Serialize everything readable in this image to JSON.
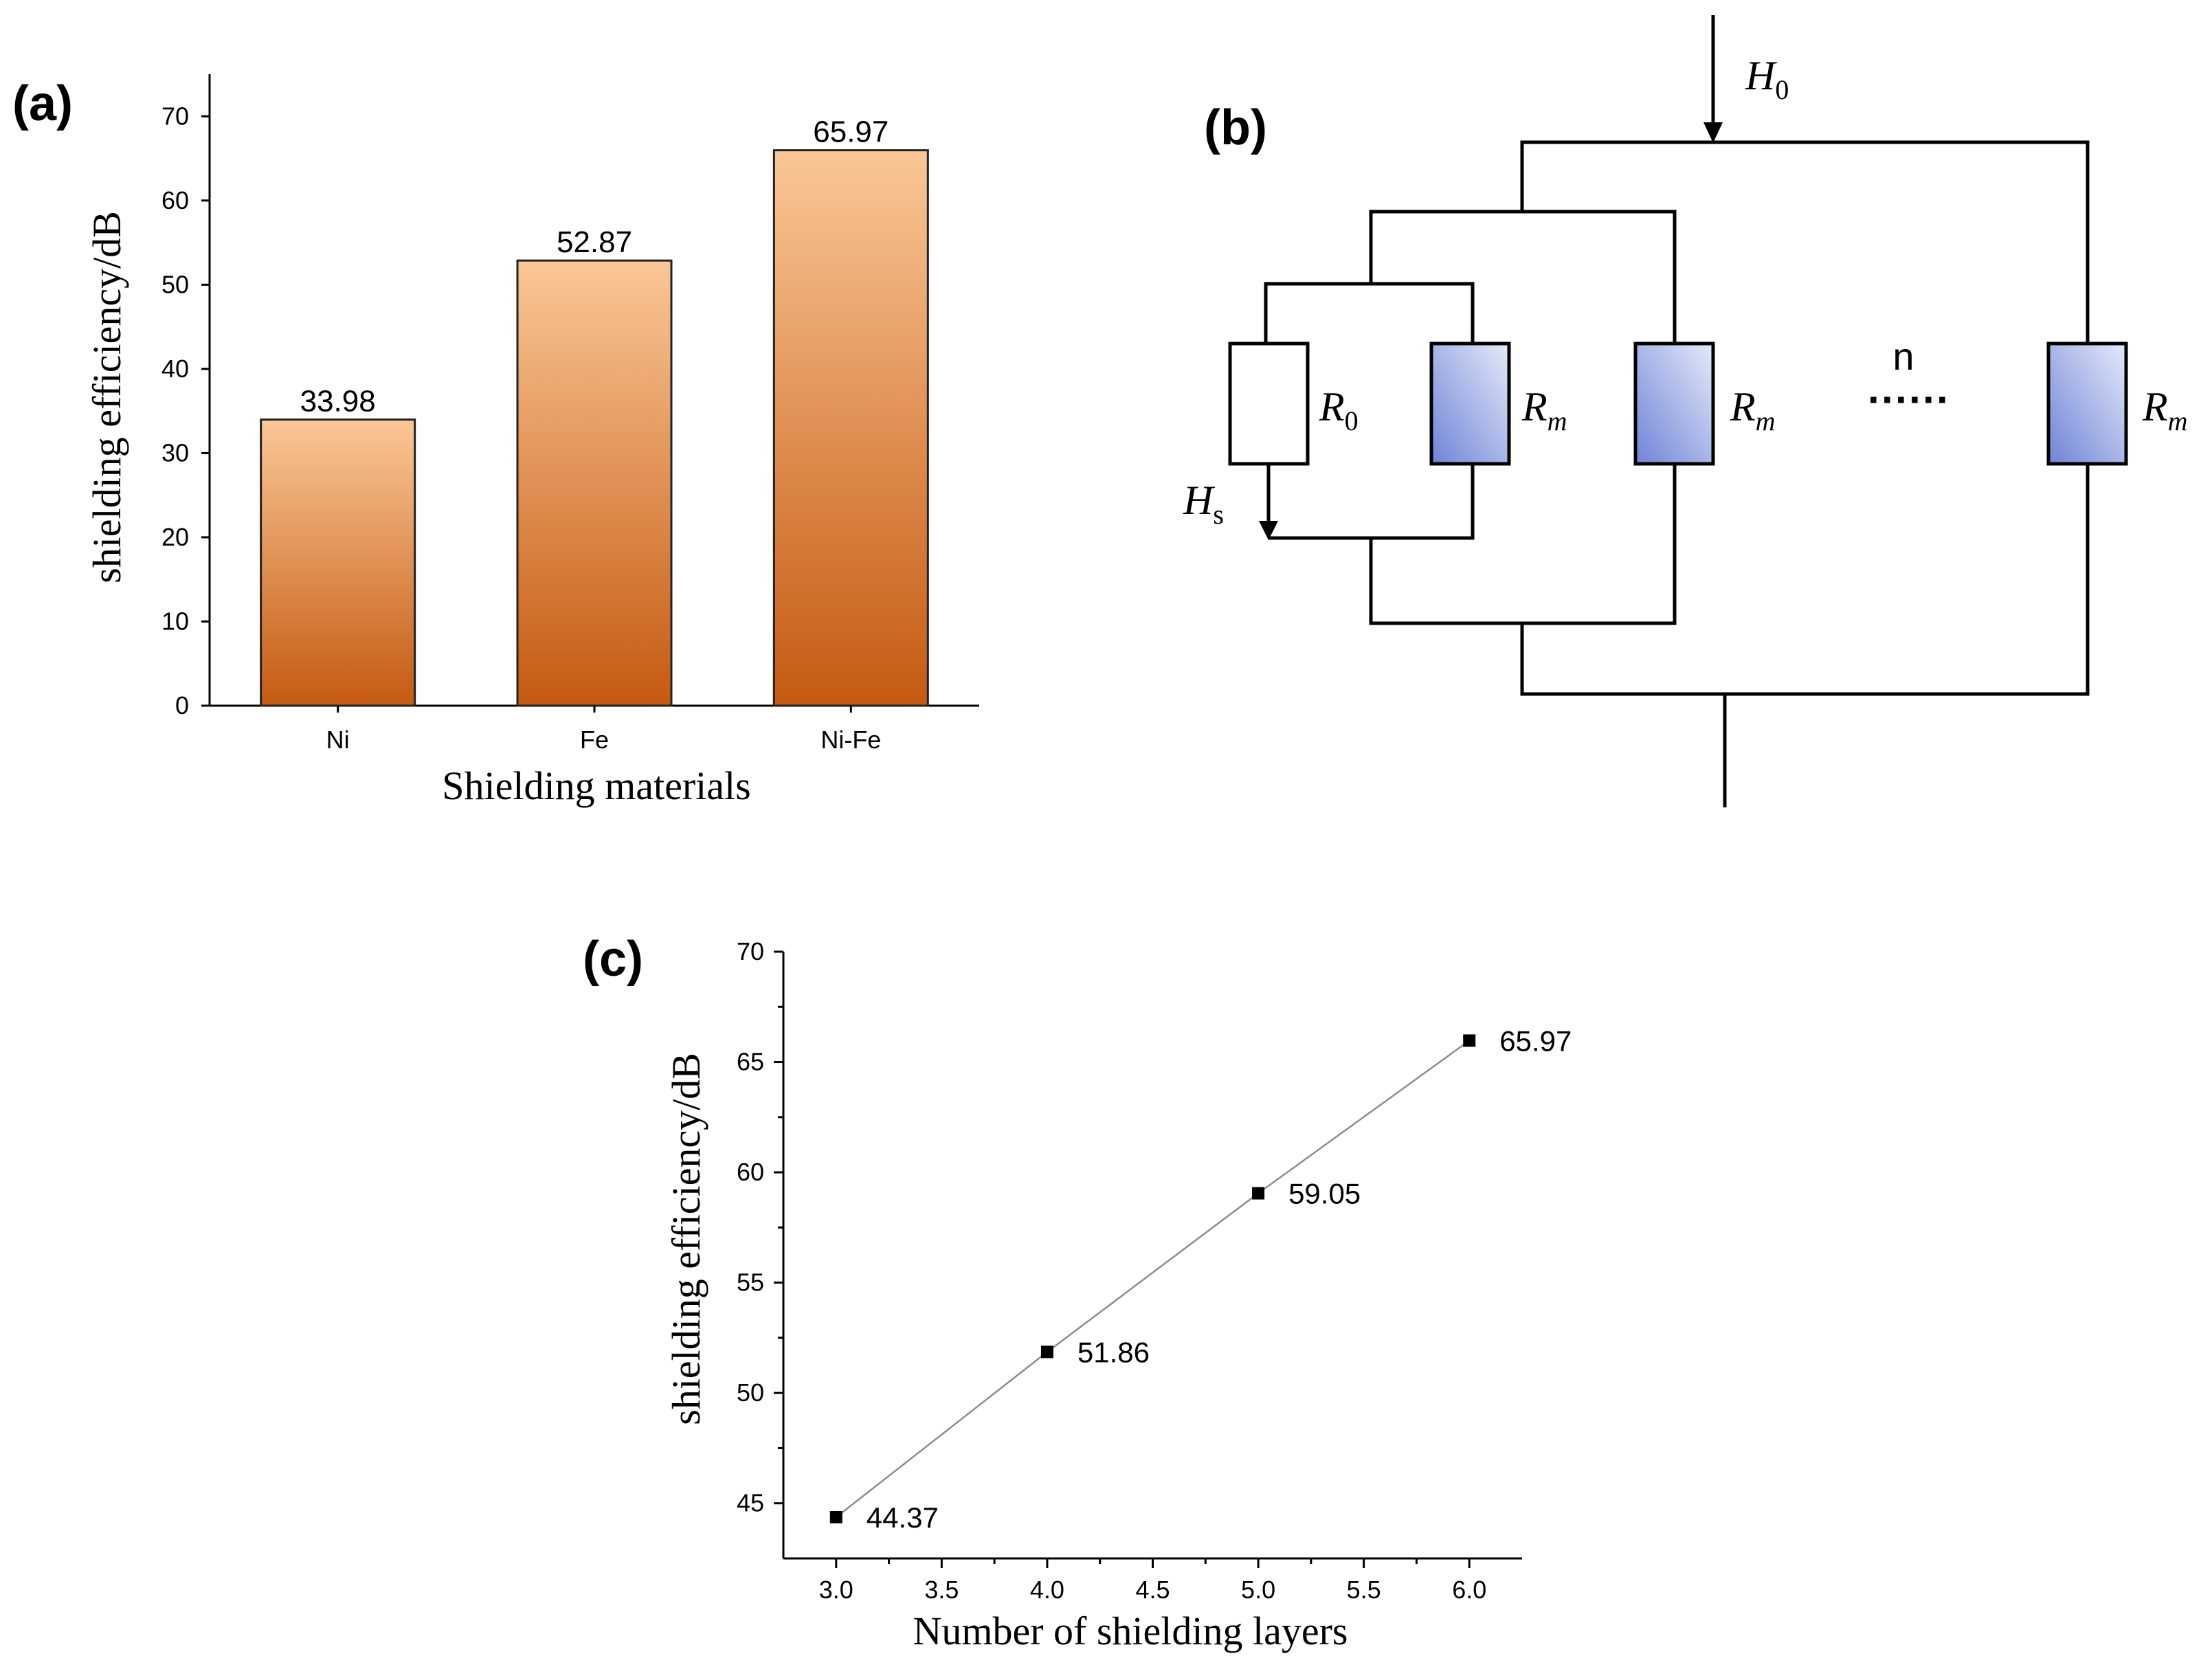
{
  "colors": {
    "bar_top": "#FAC796",
    "bar_bottom": "#C55A11",
    "resistor_fill_light": "#E4EAF8",
    "resistor_fill_dark": "#6F83D8",
    "line": "#000000",
    "fit_line": "#8C8C8C"
  },
  "panel_a": {
    "label": "(a)"
  },
  "panel_b": {
    "label": "(b)",
    "h0": "H",
    "h0_sub": "0",
    "hs": "H",
    "hs_sub": "s",
    "r0": "R",
    "r0_sub": "0",
    "rm": "R",
    "rm_sub": "m",
    "n_label": "n",
    "dots": "······"
  },
  "panel_c": {
    "label": "(c)"
  },
  "chart_data": [
    {
      "type": "bar",
      "title": "",
      "categories": [
        "Ni",
        "Fe",
        "Ni-Fe"
      ],
      "values": [
        33.98,
        52.87,
        65.97
      ],
      "data_labels": [
        "33.98",
        "52.87",
        "65.97"
      ],
      "xlabel": "Shielding materials",
      "ylabel": "shielding efficiency/dB",
      "ylim": [
        0,
        75
      ],
      "yticks": [
        0,
        10,
        20,
        30,
        40,
        50,
        60,
        70
      ],
      "ytick_labels": [
        "0",
        "10",
        "20",
        "30",
        "40",
        "50",
        "60",
        "70"
      ],
      "grid": false
    },
    {
      "type": "line",
      "title": "",
      "x": [
        3.0,
        4.0,
        5.0,
        6.0
      ],
      "y": [
        44.37,
        51.86,
        59.05,
        65.97
      ],
      "data_labels": [
        "44.37",
        "51.86",
        "59.05",
        "65.97"
      ],
      "xlabel": "Number of shielding layers",
      "ylabel": "shielding efficiency/dB",
      "xlim": [
        2.75,
        6.25
      ],
      "ylim": [
        42.5,
        70
      ],
      "xticks": [
        3.0,
        3.5,
        4.0,
        4.5,
        5.0,
        5.5,
        6.0
      ],
      "xtick_labels": [
        "3.0",
        "3.5",
        "4.0",
        "4.5",
        "5.0",
        "5.5",
        "6.0"
      ],
      "yticks": [
        45,
        50,
        55,
        60,
        65,
        70
      ],
      "ytick_labels": [
        "45",
        "50",
        "55",
        "60",
        "65",
        "70"
      ],
      "grid": false
    }
  ]
}
